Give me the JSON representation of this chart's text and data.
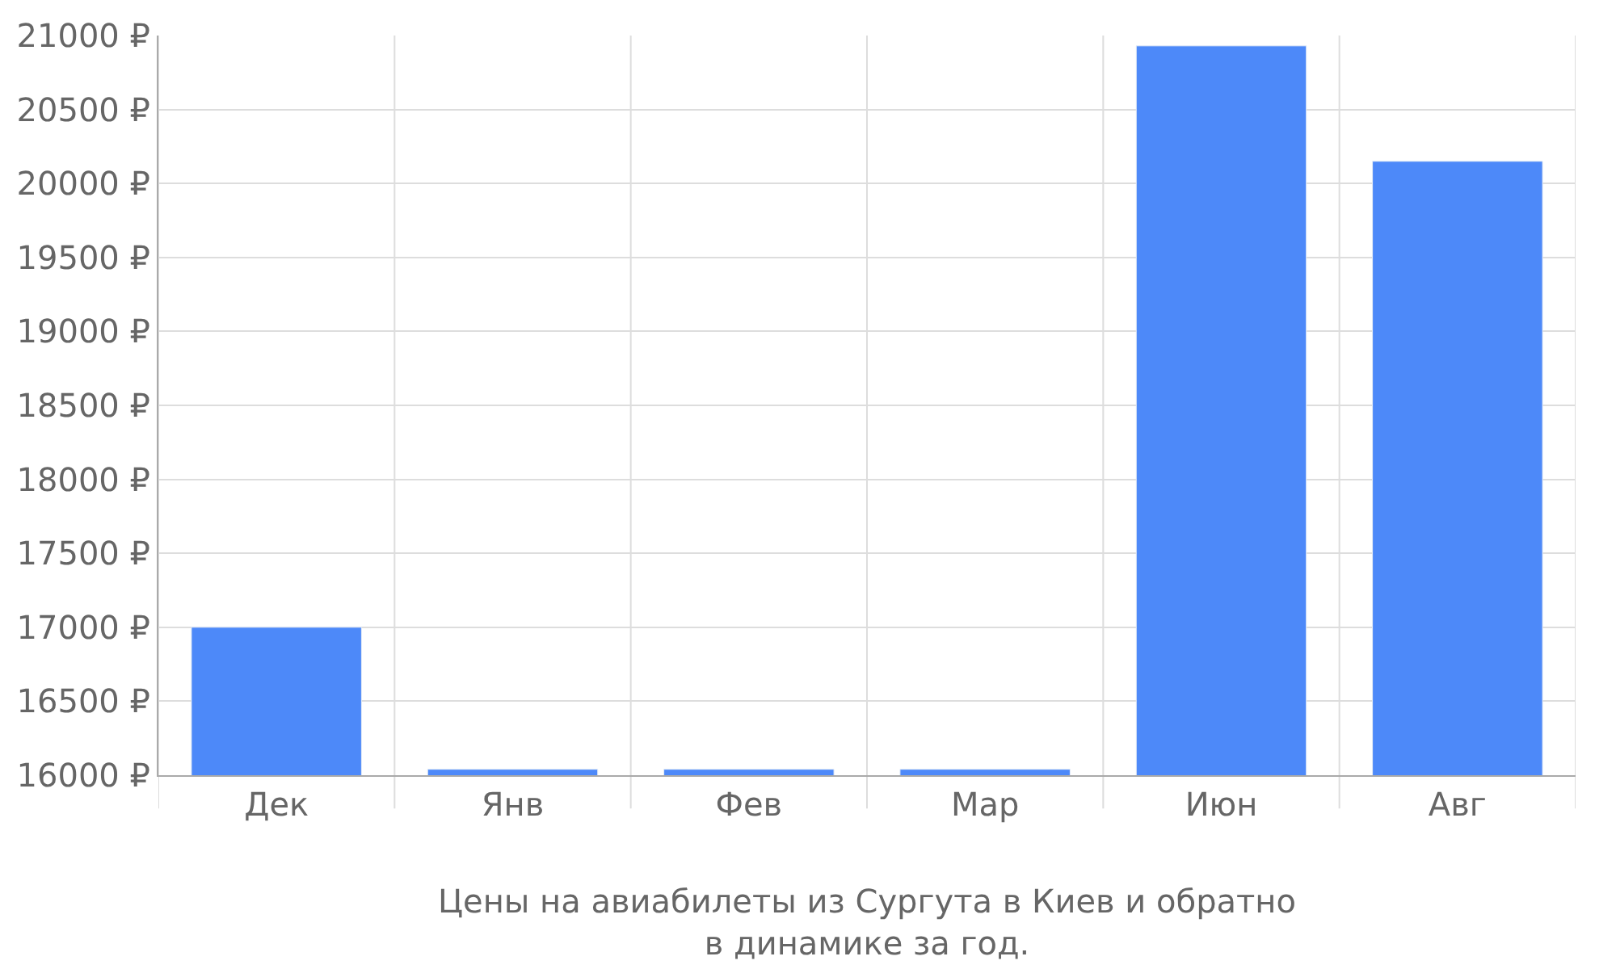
{
  "chart_data": {
    "type": "bar",
    "xlabel": "Цены на авиабилеты из Сургута в Киев и обратно\nв динамике за год.",
    "categories": [
      "Дек",
      "Янв",
      "Фев",
      "Мар",
      "Июн",
      "Авг"
    ],
    "values": [
      17000,
      16040,
      16040,
      16040,
      20930,
      20150
    ],
    "color": "#4d89f9",
    "ylim": [
      16000,
      21000
    ],
    "yticks": [
      {
        "value": 16000,
        "label": "16000 ₽"
      },
      {
        "value": 16500,
        "label": "16500 ₽"
      },
      {
        "value": 17000,
        "label": "17000 ₽"
      },
      {
        "value": 17500,
        "label": "17500 ₽"
      },
      {
        "value": 18000,
        "label": "18000 ₽"
      },
      {
        "value": 18500,
        "label": "18500 ₽"
      },
      {
        "value": 19000,
        "label": "19000 ₽"
      },
      {
        "value": 19500,
        "label": "19500 ₽"
      },
      {
        "value": 20000,
        "label": "20000 ₽"
      },
      {
        "value": 20500,
        "label": "20500 ₽"
      },
      {
        "value": 21000,
        "label": "21000 ₽"
      }
    ],
    "grid": true,
    "legend": false
  }
}
